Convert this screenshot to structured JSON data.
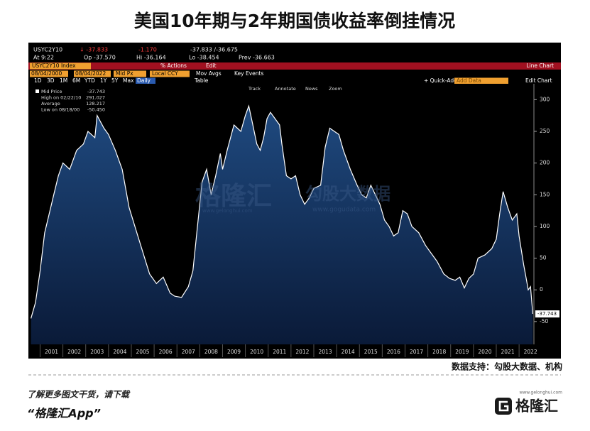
{
  "chart_data": {
    "type": "line",
    "title": "美国10年期与2年期国债收益率倒挂情况",
    "x": [
      2000.6,
      2000.8,
      2001.0,
      2001.2,
      2001.4,
      2001.6,
      2001.8,
      2002.0,
      2002.3,
      2002.6,
      2002.9,
      2003.1,
      2003.4,
      2003.5,
      2003.8,
      2004.0,
      2004.3,
      2004.6,
      2004.9,
      2005.2,
      2005.5,
      2005.8,
      2006.1,
      2006.4,
      2006.7,
      2006.9,
      2007.2,
      2007.5,
      2007.7,
      2007.9,
      2008.1,
      2008.3,
      2008.5,
      2008.7,
      2008.9,
      2009.0,
      2009.2,
      2009.5,
      2009.8,
      2010.0,
      2010.15,
      2010.3,
      2010.5,
      2010.65,
      2010.8,
      2010.95,
      2011.1,
      2011.3,
      2011.5,
      2011.6,
      2011.8,
      2012.0,
      2012.2,
      2012.4,
      2012.6,
      2012.8,
      2013.0,
      2013.3,
      2013.5,
      2013.7,
      2013.9,
      2014.1,
      2014.3,
      2014.6,
      2014.9,
      2015.1,
      2015.3,
      2015.5,
      2015.7,
      2015.9,
      2016.1,
      2016.3,
      2016.5,
      2016.7,
      2016.9,
      2017.1,
      2017.3,
      2017.6,
      2017.9,
      2018.1,
      2018.4,
      2018.7,
      2018.95,
      2019.2,
      2019.4,
      2019.6,
      2019.8,
      2020.0,
      2020.2,
      2020.5,
      2020.8,
      2021.0,
      2021.15,
      2021.3,
      2021.5,
      2021.7,
      2021.9,
      2022.0,
      2022.2,
      2022.3,
      2022.4,
      2022.5,
      2022.6
    ],
    "series": [
      {
        "name": "Mid Price",
        "color": "#ffffff",
        "values": [
          -45,
          -20,
          30,
          90,
          120,
          150,
          180,
          200,
          190,
          220,
          230,
          250,
          240,
          275,
          255,
          245,
          220,
          190,
          130,
          95,
          60,
          25,
          10,
          20,
          -5,
          -10,
          -12,
          5,
          30,
          100,
          170,
          190,
          150,
          180,
          215,
          190,
          220,
          260,
          250,
          275,
          290,
          265,
          230,
          220,
          240,
          270,
          280,
          270,
          260,
          230,
          180,
          175,
          180,
          150,
          135,
          145,
          160,
          165,
          225,
          255,
          250,
          245,
          220,
          190,
          165,
          150,
          145,
          165,
          150,
          135,
          110,
          100,
          85,
          90,
          125,
          120,
          100,
          90,
          70,
          60,
          45,
          25,
          18,
          15,
          20,
          3,
          18,
          25,
          50,
          55,
          65,
          80,
          120,
          155,
          130,
          110,
          120,
          85,
          40,
          20,
          0,
          5,
          -38
        ]
      }
    ],
    "xlim": [
      2000.55,
      2022.65
    ],
    "xticks": [
      2001,
      2002,
      2003,
      2004,
      2005,
      2006,
      2007,
      2008,
      2009,
      2010,
      2011,
      2012,
      2013,
      2014,
      2015,
      2016,
      2017,
      2018,
      2019,
      2020,
      2021,
      2022
    ],
    "ylim": [
      -86,
      325
    ],
    "yticks": [
      -50,
      0,
      50,
      100,
      150,
      200,
      250,
      300
    ],
    "last_price_label": "-37.743",
    "legend_stats": [
      [
        "Mid Price",
        "-37.743"
      ],
      [
        "High on 02/22/10",
        "291.027"
      ],
      [
        "Average",
        "128.217"
      ],
      [
        "Low on 08/18/00",
        "-50.450"
      ]
    ]
  },
  "terminal": {
    "row1": [
      "USYC2Y10",
      "↓ -37.833",
      "-1.170",
      "-37.833 /-36.675"
    ],
    "row2": [
      "At 9:22",
      "Op -37.570",
      "Hi -36.164",
      "Lo -38.454",
      "Prev -36.663"
    ],
    "bar": [
      "USYC2Y10 Index",
      "% Actions",
      "Edit",
      "Line Chart"
    ],
    "row3": [
      "08/04/2000",
      "08/04/2022",
      "Mid Px",
      "Local CCY",
      "Mov Avgs",
      "Key Events"
    ],
    "periods": [
      "1D",
      "3D",
      "1M",
      "6M",
      "YTD",
      "1Y",
      "5Y",
      "Max",
      "Daily",
      "Table"
    ],
    "right_tools": [
      "+ Quick-Add",
      "Add Data",
      "Edit Chart"
    ],
    "plot_tools": [
      "Track",
      "Annotate",
      "News",
      "Zoom"
    ]
  },
  "watermarks": [
    "格隆汇",
    "www.gelonghui.com",
    "勾股大数据",
    "www.gogudata.com"
  ],
  "footer": {
    "source": "数据支持：勾股大数据、机构",
    "promo": "了解更多图文干货，请下载",
    "app": "“格隆汇App”",
    "logo": "格隆汇",
    "url": "www.gelonghui.com"
  }
}
